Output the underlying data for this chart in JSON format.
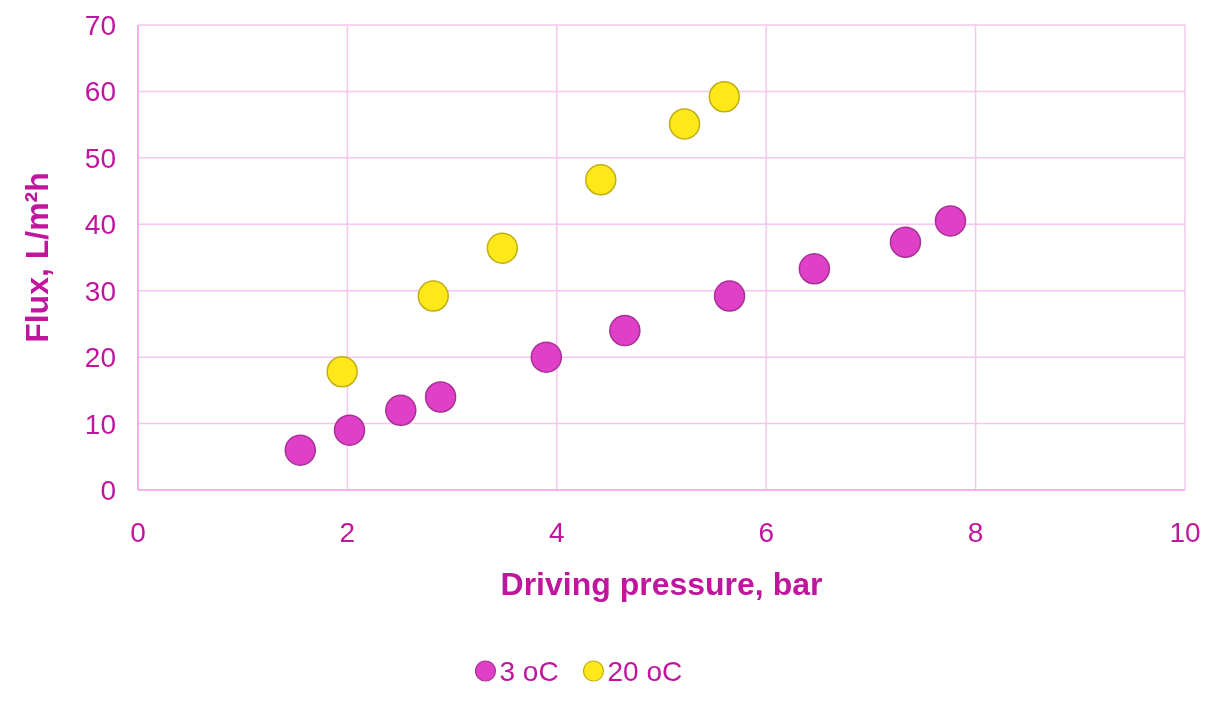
{
  "chart_data": {
    "type": "scatter",
    "xlabel": "Driving pressure, bar",
    "ylabel": "Flux, L/m²h",
    "xlim": [
      0,
      10
    ],
    "xticks": [
      0,
      2,
      4,
      6,
      8,
      10
    ],
    "ylim": [
      0,
      70
    ],
    "yticks": [
      0,
      10,
      20,
      30,
      40,
      50,
      60,
      70
    ],
    "grid": true,
    "legend": "bottom",
    "marker": "circle",
    "series": [
      {
        "name": "3 oC",
        "color": "#e040c8",
        "x": [
          1.55,
          2.02,
          2.51,
          2.89,
          3.9,
          4.65,
          5.65,
          6.46,
          7.33,
          7.76
        ],
        "values": [
          6,
          9,
          12,
          14,
          20,
          24,
          29.2,
          33.3,
          37.3,
          40.5
        ]
      },
      {
        "name": "20 oC",
        "color": "#ffe81a",
        "x": [
          1.95,
          2.82,
          3.48,
          4.42,
          5.22,
          5.6
        ],
        "values": [
          17.8,
          29.2,
          36.4,
          46.7,
          55.1,
          59.2
        ]
      }
    ]
  }
}
